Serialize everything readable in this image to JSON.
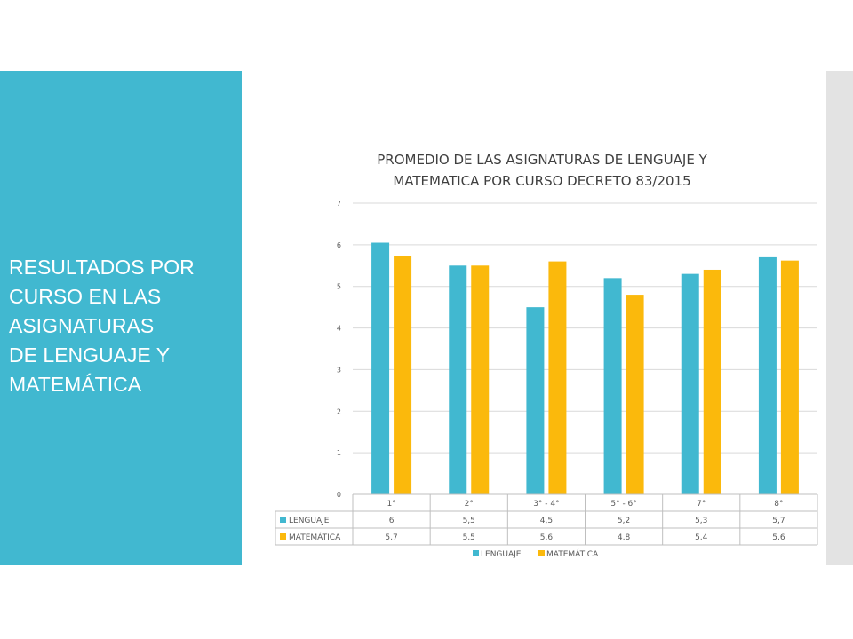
{
  "slide": {
    "title": "RESULTADOS POR\nCURSO EN LAS\nASIGNATURAS\nDE LENGUAJE Y\nMATEMÁTICA"
  },
  "colors": {
    "panel": "#41b8d0",
    "lenguaje": "#41b8d0",
    "matematica": "#fbb90c",
    "strip": "#e3e3e3"
  },
  "chart_data": {
    "type": "bar",
    "title": "PROMEDIO DE LAS ASIGNATURAS DE LENGUAJE Y MATEMATICA POR  CURSO DECRETO 83/2015",
    "categories": [
      "1°",
      "2°",
      "3° - 4°",
      "5° - 6°",
      "7°",
      "8°"
    ],
    "series": [
      {
        "name": "LENGUAJE",
        "values": [
          6.05,
          5.5,
          4.5,
          5.2,
          5.3,
          5.7
        ],
        "labels": [
          "6",
          "5,5",
          "4,5",
          "5,2",
          "5,3",
          "5,7"
        ],
        "color": "#41b8d0"
      },
      {
        "name": "MATEMÁTICA",
        "values": [
          5.72,
          5.5,
          5.6,
          4.8,
          5.4,
          5.62
        ],
        "labels": [
          "5,7",
          "5,5",
          "5,6",
          "4,8",
          "5,4",
          "5,6"
        ],
        "color": "#fbb90c"
      }
    ],
    "yticks": [
      "0",
      "1",
      "2",
      "3",
      "4",
      "5",
      "6",
      "7"
    ],
    "ylim": [
      0,
      7
    ],
    "grid": true,
    "legend": "bottom",
    "data_table": true
  }
}
